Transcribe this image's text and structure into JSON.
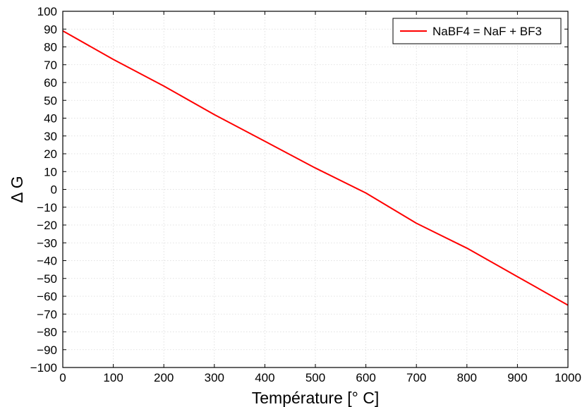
{
  "chart_data": {
    "type": "line",
    "title": "",
    "xlabel": "Température [° C]",
    "ylabel": "Δ G",
    "xlim": [
      0,
      1000
    ],
    "ylim": [
      -100,
      100
    ],
    "xticks": [
      0,
      100,
      200,
      300,
      400,
      500,
      600,
      700,
      800,
      900,
      1000
    ],
    "yticks": [
      -100,
      -90,
      -80,
      -70,
      -60,
      -50,
      -40,
      -30,
      -20,
      -10,
      0,
      10,
      20,
      30,
      40,
      50,
      60,
      70,
      80,
      90,
      100
    ],
    "x_tick_labels": [
      "0",
      "100",
      "200",
      "300",
      "400",
      "500",
      "600",
      "700",
      "800",
      "900",
      "1000"
    ],
    "y_tick_labels": [
      "−100",
      "−90",
      "−80",
      "−70",
      "−60",
      "−50",
      "−40",
      "−30",
      "−20",
      "−10",
      "0",
      "10",
      "20",
      "30",
      "40",
      "50",
      "60",
      "70",
      "80",
      "90",
      "100"
    ],
    "grid": true,
    "legend_position": "top-right",
    "series": [
      {
        "name": "NaBF4 = NaF + BF3",
        "color": "#ff0000",
        "x": [
          0,
          100,
          200,
          300,
          400,
          500,
          600,
          700,
          800,
          900,
          1000
        ],
        "y": [
          89,
          73,
          58,
          42,
          27,
          12,
          -2,
          -19,
          -33,
          -49,
          -65
        ]
      }
    ]
  }
}
